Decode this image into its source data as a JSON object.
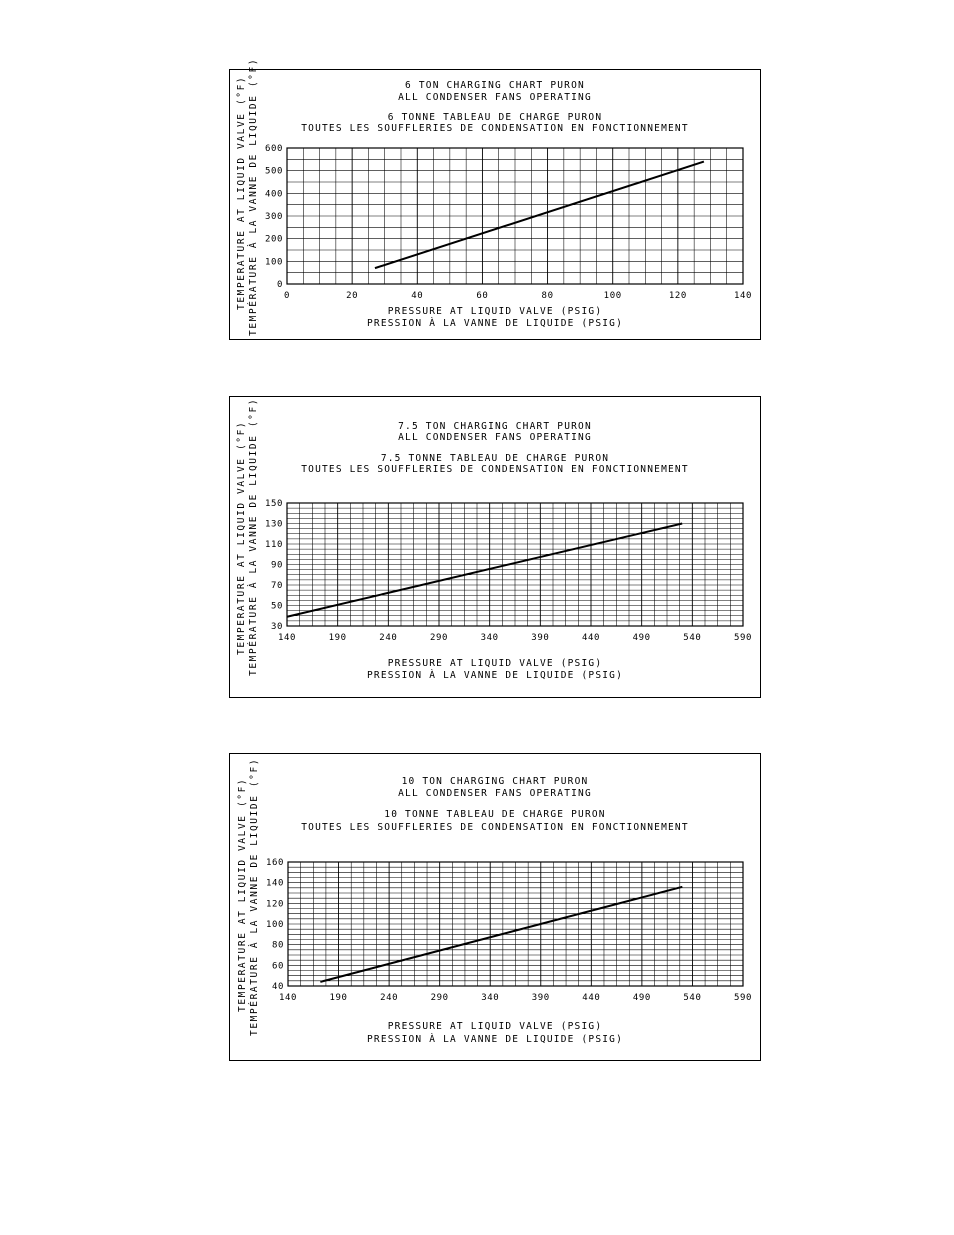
{
  "chart_data": [
    {
      "type": "line",
      "title": "6 TON CHARGING CHART PURON",
      "subtitle": "ALL CONDENSER FANS OPERATING",
      "title_fr": "6 TONNE TABLEAU DE CHARGE PURON",
      "subtitle_fr": "TOUTES LES SOUFFLERIES DE CONDENSATION EN FONCTIONNEMENT",
      "xlabel": "PRESSURE AT LIQUID VALVE (PSIG)",
      "xlabel_fr": "PRESSION À LA VANNE DE LIQUIDE (PSIG)",
      "ylabel": "TEMPERATURE AT LIQUID VALVE (°F)",
      "ylabel_fr": "TEMPÉRATURE À LA VANNE DE LIQUIDE (°F)",
      "xlim": [
        0,
        140
      ],
      "ylim": [
        0,
        600
      ],
      "xticks": [
        0,
        20,
        40,
        60,
        80,
        100,
        120,
        140
      ],
      "yticks": [
        0,
        100,
        200,
        300,
        400,
        500,
        600
      ],
      "grid": true,
      "series": [
        {
          "x": [
            27,
            128
          ],
          "y": [
            70,
            540
          ]
        }
      ]
    },
    {
      "type": "line",
      "title": "7.5 TON CHARGING CHART PURON",
      "subtitle": "ALL CONDENSER FANS OPERATING",
      "title_fr": "7.5 TONNE TABLEAU DE CHARGE PURON",
      "subtitle_fr": "TOUTES LES SOUFFLERIES DE CONDENSATION EN FONCTIONNEMENT",
      "xlabel": "PRESSURE AT LIQUID VALVE (PSIG)",
      "xlabel_fr": "PRESSION À LA VANNE DE LIQUIDE (PSIG)",
      "ylabel": "TEMPERATURE AT LIQUID VALVE (°F)",
      "ylabel_fr": "TEMPÉRATURE À LA VANNE DE LIQUIDE (°F)",
      "xlim": [
        140,
        590
      ],
      "ylim": [
        30,
        150
      ],
      "xticks": [
        140,
        190,
        240,
        290,
        340,
        390,
        440,
        490,
        540,
        590
      ],
      "yticks": [
        30,
        50,
        70,
        90,
        110,
        130,
        150
      ],
      "grid": true,
      "series": [
        {
          "x": [
            140,
            530
          ],
          "y": [
            39,
            130
          ]
        }
      ]
    },
    {
      "type": "line",
      "title": "10 TON CHARGING CHART PURON",
      "subtitle": "ALL CONDENSER FANS OPERATING",
      "title_fr": "10 TONNE TABLEAU DE CHARGE PURON",
      "subtitle_fr": "TOUTES LES SOUFFLERIES DE CONDENSATION EN FONCTIONNEMENT",
      "xlabel": "PRESSURE AT LIQUID VALVE (PSIG)",
      "xlabel_fr": "PRESSION À LA VANNE DE LIQUIDE (PSIG)",
      "ylabel": "TEMPERATURE AT LIQUID VALVE (°F)",
      "ylabel_fr": "TEMPÉRATURE À LA VANNE DE LIQUIDE (°F)",
      "xlim": [
        140,
        590
      ],
      "ylim": [
        40,
        160
      ],
      "xticks": [
        140,
        190,
        240,
        290,
        340,
        390,
        440,
        490,
        540,
        590
      ],
      "yticks": [
        40,
        60,
        80,
        100,
        120,
        140,
        160
      ],
      "grid": true,
      "series": [
        {
          "x": [
            172,
            530
          ],
          "y": [
            44,
            136
          ]
        }
      ]
    }
  ]
}
